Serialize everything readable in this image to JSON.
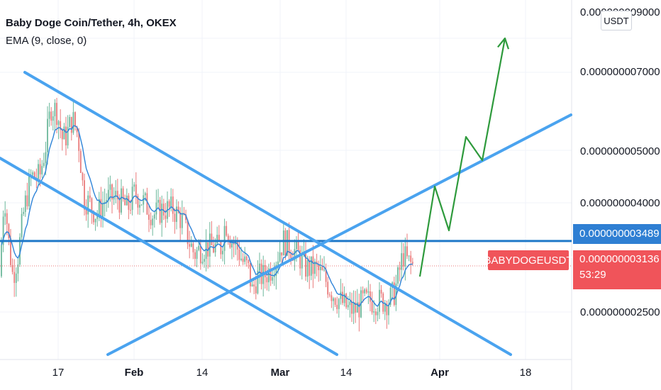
{
  "legend": {
    "title": "Baby Doge Coin/Tether, 4h, OKEX",
    "indicator": "EMA (9, close, 0)"
  },
  "unit_badge": "USDT",
  "symbol_tag": "BABYDOGEUSDT",
  "level_tag": {
    "value": "0.000000003489",
    "color": "#2f7fd3"
  },
  "last_price_tag": {
    "value": "0.000000003136",
    "countdown": "53:29",
    "color": "#f0545a"
  },
  "colors": {
    "trendline": "#4aa3ef",
    "projection": "#2e9a3c",
    "level_line": "#1f78c8",
    "ema": "#2f84d8",
    "candle_up": "#6bb79b",
    "candle_down": "#e97a7a"
  },
  "chart_data": {
    "type": "candlestick",
    "title": "Baby Doge Coin/Tether, 4h, OKEX",
    "y_ticks": [
      "0.000000009000",
      "0.000000007000",
      "0.000000005000",
      "0.000000004000",
      "0.000000002500"
    ],
    "x_ticks": [
      {
        "label": "17",
        "bold": false
      },
      {
        "label": "Feb",
        "bold": true
      },
      {
        "label": "14",
        "bold": false
      },
      {
        "label": "Mar",
        "bold": true
      },
      {
        "label": "14",
        "bold": false
      },
      {
        "label": "Apr",
        "bold": true
      },
      {
        "label": "18",
        "bold": false
      }
    ],
    "y_scale": "log",
    "ylim": [
      2.1e-09,
      9.8e-09
    ],
    "horizontal_level": 3.489e-09,
    "last_price": 3.136e-09,
    "price_path": [
      [
        0,
        3e-09
      ],
      [
        6,
        4.3e-09
      ],
      [
        12,
        3.5e-09
      ],
      [
        18,
        3e-09
      ],
      [
        26,
        3.3e-09
      ],
      [
        34,
        4e-09
      ],
      [
        44,
        4.6e-09
      ],
      [
        56,
        4.6e-09
      ],
      [
        64,
        5.2e-09
      ],
      [
        72,
        6.2e-09
      ],
      [
        80,
        6.1e-09
      ],
      [
        88,
        5.4e-09
      ],
      [
        94,
        5.5e-09
      ],
      [
        102,
        5.9e-09
      ],
      [
        110,
        5.5e-09
      ],
      [
        118,
        4.2e-09
      ],
      [
        126,
        4.1e-09
      ],
      [
        136,
        3.9e-09
      ],
      [
        150,
        4.2e-09
      ],
      [
        166,
        4.2e-09
      ],
      [
        180,
        4e-09
      ],
      [
        190,
        4.3e-09
      ],
      [
        204,
        4.1e-09
      ],
      [
        216,
        3.9e-09
      ],
      [
        230,
        4e-09
      ],
      [
        244,
        4e-09
      ],
      [
        258,
        3.8e-09
      ],
      [
        266,
        3.5e-09
      ],
      [
        274,
        3.3e-09
      ],
      [
        286,
        3.4e-09
      ],
      [
        300,
        3.4e-09
      ],
      [
        312,
        3.4e-09
      ],
      [
        318,
        3.8e-09
      ],
      [
        326,
        3.5e-09
      ],
      [
        334,
        3.4e-09
      ],
      [
        342,
        3.2e-09
      ],
      [
        350,
        3.1e-09
      ],
      [
        356,
        2.8e-09
      ],
      [
        362,
        3e-09
      ],
      [
        372,
        3e-09
      ],
      [
        382,
        3.1e-09
      ],
      [
        392,
        3.3e-09
      ],
      [
        400,
        3.5e-09
      ],
      [
        410,
        3.4e-09
      ],
      [
        420,
        3.3e-09
      ],
      [
        432,
        3.1e-09
      ],
      [
        444,
        3.1e-09
      ],
      [
        456,
        3e-09
      ],
      [
        468,
        2.8e-09
      ],
      [
        480,
        2.7e-09
      ],
      [
        492,
        2.6e-09
      ],
      [
        502,
        2.6e-09
      ],
      [
        512,
        2.7e-09
      ],
      [
        524,
        2.7e-09
      ],
      [
        536,
        2.7e-09
      ],
      [
        548,
        2.7e-09
      ],
      [
        556,
        2.8e-09
      ],
      [
        562,
        3e-09
      ],
      [
        568,
        3.3e-09
      ],
      [
        574,
        3.2e-09
      ],
      [
        582,
        3.14e-09
      ]
    ],
    "drawings": {
      "trend_line_upper_descending": [
        [
          35,
          102
        ],
        [
          720,
          500
        ]
      ],
      "trend_line_lower_descending": [
        [
          0,
          223
        ],
        [
          475,
          500
        ]
      ],
      "trend_line_ascending": [
        [
          152,
          500
        ],
        [
          805,
          162
        ]
      ],
      "projection_path": [
        [
          592,
          390
        ],
        [
          613,
          263
        ],
        [
          633,
          325
        ],
        [
          657,
          193
        ],
        [
          680,
          226
        ],
        [
          712,
          54
        ]
      ]
    }
  }
}
